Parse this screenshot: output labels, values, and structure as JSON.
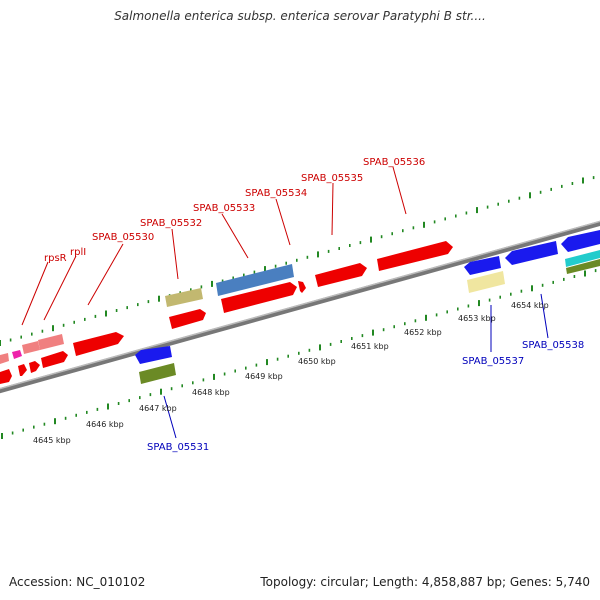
{
  "header": {
    "title": "Salmonella enterica subsp. enterica serovar Paratyphi B str...."
  },
  "footer": {
    "accession": "Accession: NC_010102",
    "topology": "Topology: circular; Length: 4,858,887 bp; Genes: 5,740"
  },
  "scale": {
    "unit": "kbp",
    "ticks": [
      "4645 kbp",
      "4646 kbp",
      "4647 kbp",
      "4648 kbp",
      "4649 kbp",
      "4650 kbp",
      "4651 kbp",
      "4652 kbp",
      "4653 kbp",
      "4654 kbp"
    ]
  },
  "gene_labels": {
    "forward": [
      "rpsR",
      "rplI",
      "SPAB_05530",
      "SPAB_05532",
      "SPAB_05533",
      "SPAB_05534",
      "SPAB_05535",
      "SPAB_05536"
    ],
    "reverse": [
      "SPAB_05531",
      "SPAB_05537",
      "SPAB_05538"
    ]
  },
  "colors": {
    "forward_label": "#cc0000",
    "reverse_label": "#0000bb",
    "cds_red": "#ee0000",
    "cds_blue": "#1a1aee",
    "cds_steel": "#4a7fc0",
    "cds_khaki": "#c2b870",
    "cds_olive": "#6b8a25",
    "cds_cream": "#f0e6a0",
    "cds_pink": "#f08080",
    "cds_magenta": "#ee22aa",
    "cds_cyan": "#22cccc",
    "backbone": "#888888",
    "tick_green": "#228822"
  }
}
